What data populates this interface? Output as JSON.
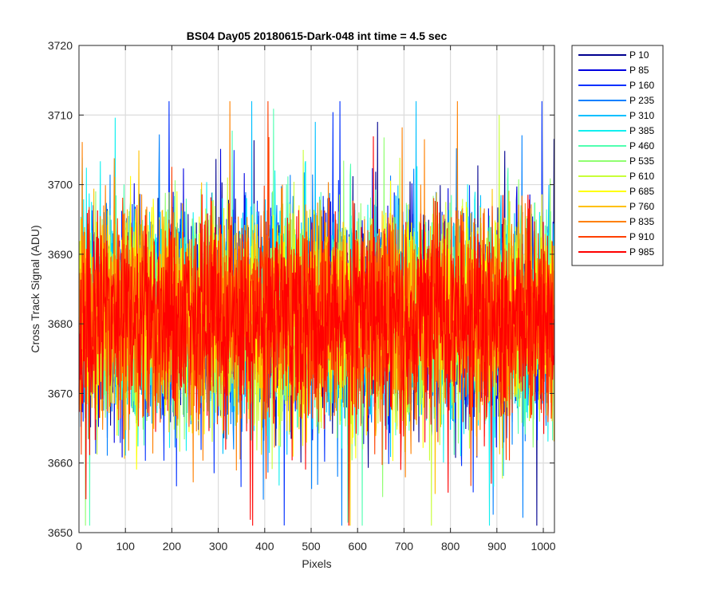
{
  "chart_data": {
    "type": "line",
    "title": "BS04 Day05 20180615-Dark-048 int time = 4.5 sec",
    "xlabel": "Pixels",
    "ylabel": "Cross Track Signal (ADU)",
    "xlim": [
      0,
      1024
    ],
    "ylim": [
      3650,
      3720
    ],
    "xticks": [
      0,
      100,
      200,
      300,
      400,
      500,
      600,
      700,
      800,
      900,
      1000
    ],
    "yticks": [
      3650,
      3660,
      3670,
      3680,
      3690,
      3700,
      3710,
      3720
    ],
    "grid": true,
    "legend_position": "outside-top-right",
    "n_points_per_series": 1024,
    "series_summary": {
      "approx_mean": 3681,
      "approx_min": 3651,
      "approx_max": 3712,
      "note": "noisy dark-frame signal fluctuating between roughly 3660 and 3700 ADU"
    },
    "series": [
      {
        "name": "P 10",
        "color": "#00008f"
      },
      {
        "name": "P 85",
        "color": "#0000e0"
      },
      {
        "name": "P 160",
        "color": "#0030ff"
      },
      {
        "name": "P 235",
        "color": "#0080ff"
      },
      {
        "name": "P 310",
        "color": "#00c0ff"
      },
      {
        "name": "P 385",
        "color": "#10f0f0"
      },
      {
        "name": "P 460",
        "color": "#50ffb0"
      },
      {
        "name": "P 535",
        "color": "#90ff70"
      },
      {
        "name": "P 610",
        "color": "#c8ff38"
      },
      {
        "name": "P 685",
        "color": "#ffff00"
      },
      {
        "name": "P 760",
        "color": "#ffc000"
      },
      {
        "name": "P 835",
        "color": "#ff8000"
      },
      {
        "name": "P 910",
        "color": "#ff4000"
      },
      {
        "name": "P 985",
        "color": "#ff0000"
      }
    ]
  }
}
